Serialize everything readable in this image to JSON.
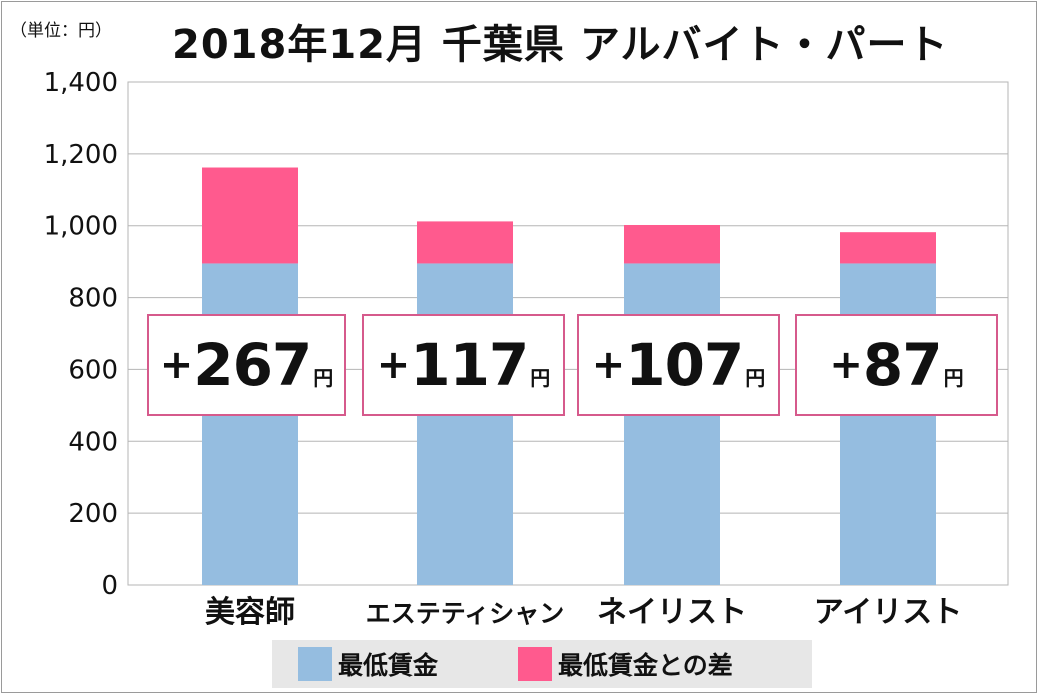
{
  "unit_label": "（単位：円）",
  "title": "2018年12月 千葉県 アルバイト・パート",
  "chart_data": {
    "type": "bar",
    "stacked": true,
    "title": "2018年12月 千葉県 アルバイト・パート",
    "unit": "（単位：円）",
    "categories": [
      "美容師",
      "エステティシャン",
      "ネイリスト",
      "アイリスト"
    ],
    "series": [
      {
        "name": "最低賃金",
        "color": "#95bde0",
        "values": [
          895,
          895,
          895,
          895
        ]
      },
      {
        "name": "最低賃金との差",
        "color": "#ff5a8e",
        "values": [
          267,
          117,
          107,
          87
        ]
      }
    ],
    "ylim": [
      0,
      1400
    ],
    "yticks": [
      0,
      200,
      400,
      600,
      800,
      1000,
      1200,
      1400
    ],
    "ytick_labels": [
      "0",
      "200",
      "400",
      "600",
      "800",
      "1,000",
      "1,200",
      "1,400"
    ],
    "grid": true,
    "legend": "bottom",
    "annotations": [
      {
        "sign": "+",
        "value": "267",
        "unit": "円"
      },
      {
        "sign": "+",
        "value": "117",
        "unit": "円"
      },
      {
        "sign": "+",
        "value": "107",
        "unit": "円"
      },
      {
        "sign": "+",
        "value": "87",
        "unit": "円"
      }
    ]
  }
}
